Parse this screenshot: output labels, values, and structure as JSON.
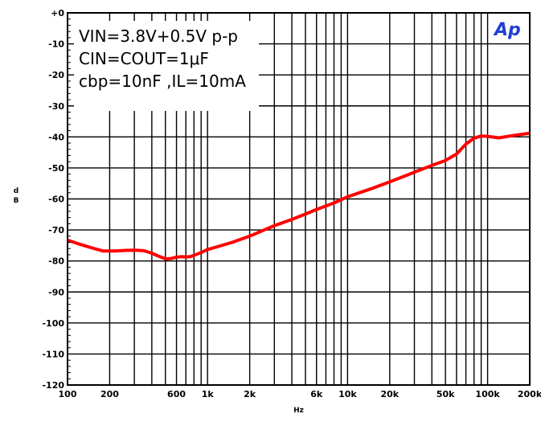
{
  "chart_data": {
    "type": "line",
    "title": "",
    "xlabel": "Hz",
    "ylabel": "d\nB",
    "x_scale": "log",
    "xlim": [
      100,
      200000
    ],
    "ylim": [
      -120,
      0
    ],
    "grid": true,
    "x_ticks": [
      {
        "value": 100,
        "label": "100"
      },
      {
        "value": 200,
        "label": "200"
      },
      {
        "value": 600,
        "label": "600"
      },
      {
        "value": 1000,
        "label": "1k"
      },
      {
        "value": 2000,
        "label": "2k"
      },
      {
        "value": 6000,
        "label": "6k"
      },
      {
        "value": 10000,
        "label": "10k"
      },
      {
        "value": 20000,
        "label": "20k"
      },
      {
        "value": 50000,
        "label": "50k"
      },
      {
        "value": 100000,
        "label": "100k"
      },
      {
        "value": 200000,
        "label": "200k"
      }
    ],
    "x_gridlines": [
      100,
      200,
      300,
      400,
      500,
      600,
      700,
      800,
      900,
      1000,
      2000,
      3000,
      4000,
      5000,
      6000,
      7000,
      8000,
      9000,
      10000,
      20000,
      30000,
      40000,
      50000,
      60000,
      70000,
      80000,
      90000,
      100000,
      200000
    ],
    "y_ticks": [
      {
        "value": 0,
        "label": "+0"
      },
      {
        "value": -10,
        "label": "-10"
      },
      {
        "value": -20,
        "label": "-20"
      },
      {
        "value": -30,
        "label": "-30"
      },
      {
        "value": -40,
        "label": "-40"
      },
      {
        "value": -50,
        "label": "-50"
      },
      {
        "value": -60,
        "label": "-60"
      },
      {
        "value": -70,
        "label": "-70"
      },
      {
        "value": -80,
        "label": "-80"
      },
      {
        "value": -90,
        "label": "-90"
      },
      {
        "value": -100,
        "label": "-100"
      },
      {
        "value": -110,
        "label": "-110"
      },
      {
        "value": -120,
        "label": "-120"
      }
    ],
    "annotations": [
      "VIN=3.8V+0.5V p-p",
      "CIN=COUT=1μF",
      "cbp=10nF ,IL=10mA"
    ],
    "logo_text": "Ap",
    "series": [
      {
        "color": "#ff0000",
        "points": [
          [
            100,
            -73.3
          ],
          [
            120,
            -74.5
          ],
          [
            150,
            -75.8
          ],
          [
            180,
            -76.8
          ],
          [
            220,
            -76.8
          ],
          [
            260,
            -76.6
          ],
          [
            300,
            -76.5
          ],
          [
            350,
            -76.7
          ],
          [
            400,
            -77.5
          ],
          [
            450,
            -78.5
          ],
          [
            500,
            -79.3
          ],
          [
            550,
            -79.2
          ],
          [
            600,
            -78.8
          ],
          [
            650,
            -78.6
          ],
          [
            700,
            -78.7
          ],
          [
            750,
            -78.6
          ],
          [
            800,
            -78.2
          ],
          [
            900,
            -77.3
          ],
          [
            1000,
            -76.3
          ],
          [
            1200,
            -75.3
          ],
          [
            1500,
            -74.0
          ],
          [
            2000,
            -72.0
          ],
          [
            3000,
            -68.6
          ],
          [
            4000,
            -66.6
          ],
          [
            5000,
            -64.9
          ],
          [
            6000,
            -63.4
          ],
          [
            8000,
            -61.3
          ],
          [
            10000,
            -59.3
          ],
          [
            15000,
            -56.6
          ],
          [
            20000,
            -54.5
          ],
          [
            30000,
            -51.4
          ],
          [
            40000,
            -49.2
          ],
          [
            50000,
            -47.6
          ],
          [
            60000,
            -45.5
          ],
          [
            70000,
            -42.3
          ],
          [
            80000,
            -40.4
          ],
          [
            90000,
            -39.7
          ],
          [
            100000,
            -39.8
          ],
          [
            120000,
            -40.3
          ],
          [
            150000,
            -39.6
          ],
          [
            200000,
            -38.8
          ]
        ]
      }
    ]
  }
}
